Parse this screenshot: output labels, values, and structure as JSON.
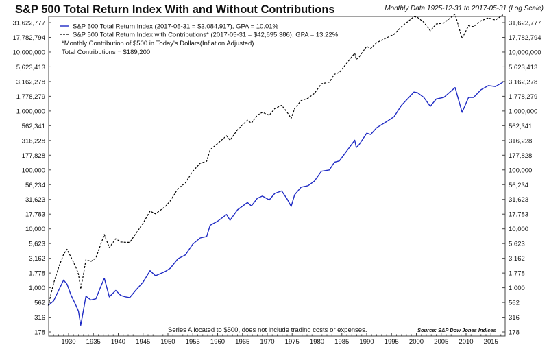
{
  "chart_data": {
    "type": "line",
    "title": "S&P 500 Total Return Index With and Without Contributions",
    "subtitle": "Monthly Data 1925-12-31 to 2017-05-31 (Log Scale)",
    "yscale": "log",
    "xlim": [
      1925.917,
      2017.417
    ],
    "ylim": [
      178,
      56234132
    ],
    "grid": false,
    "legend_position": "top-left",
    "y_ticks": [
      {
        "value": 178,
        "label": "178"
      },
      {
        "value": 316,
        "label": "316"
      },
      {
        "value": 562,
        "label": "562"
      },
      {
        "value": 1000,
        "label": "1,000"
      },
      {
        "value": 1778,
        "label": "1,778"
      },
      {
        "value": 3162,
        "label": "3,162"
      },
      {
        "value": 5623,
        "label": "5,623"
      },
      {
        "value": 10000,
        "label": "10,000"
      },
      {
        "value": 17783,
        "label": "17,783"
      },
      {
        "value": 31623,
        "label": "31,623"
      },
      {
        "value": 56234,
        "label": "56,234"
      },
      {
        "value": 100000,
        "label": "100,000"
      },
      {
        "value": 177828,
        "label": "177,828"
      },
      {
        "value": 316228,
        "label": "316,228"
      },
      {
        "value": 562341,
        "label": "562,341"
      },
      {
        "value": 1000000,
        "label": "1,000,000"
      },
      {
        "value": 1778279,
        "label": "1,778,279"
      },
      {
        "value": 3162278,
        "label": "3,162,278"
      },
      {
        "value": 5623413,
        "label": "5,623,413"
      },
      {
        "value": 10000000,
        "label": "10,000,000"
      },
      {
        "value": 17782794,
        "label": "17,782,794"
      },
      {
        "value": 31622777,
        "label": "31,622,777"
      }
    ],
    "x_ticks": [
      1930,
      1935,
      1940,
      1945,
      1950,
      1955,
      1960,
      1965,
      1970,
      1975,
      1980,
      1985,
      1990,
      1995,
      2000,
      2005,
      2010,
      2015
    ],
    "series": [
      {
        "name": "S&P 500 Total Return Index (2017-05-31 = $3,084,917), GPA = 10.01%",
        "color": "#1f2bc4",
        "dash": "solid",
        "x": [
          1925.92,
          1927,
          1928,
          1929.0,
          1929.7,
          1930.5,
          1931.5,
          1932.0,
          1932.45,
          1933.0,
          1933.5,
          1934.5,
          1935.5,
          1936.5,
          1937.2,
          1938.2,
          1939.5,
          1940.5,
          1941.5,
          1942.3,
          1943.5,
          1945.0,
          1946.4,
          1947.5,
          1949.5,
          1950.5,
          1952.0,
          1953.5,
          1955.0,
          1956.5,
          1957.8,
          1958.5,
          1960.0,
          1961.8,
          1962.5,
          1964.0,
          1966.0,
          1966.8,
          1968.0,
          1969.0,
          1970.4,
          1971.5,
          1972.9,
          1974.0,
          1974.8,
          1975.5,
          1976.8,
          1978.2,
          1979.5,
          1980.9,
          1982.5,
          1983.5,
          1984.5,
          1986.0,
          1987.6,
          1987.9,
          1988.5,
          1990.0,
          1990.8,
          1992.0,
          1994.0,
          1995.5,
          1997.0,
          1998.5,
          1999.5,
          2000.2,
          2001.5,
          2002.8,
          2004.0,
          2005.5,
          2007.8,
          2009.2,
          2010.5,
          2011.5,
          2013.0,
          2014.5,
          2015.9,
          2017.42
        ],
        "y": [
          500,
          600,
          900,
          1350,
          1150,
          750,
          500,
          400,
          230,
          420,
          720,
          620,
          650,
          1050,
          1450,
          700,
          900,
          740,
          700,
          680,
          900,
          1250,
          1950,
          1600,
          1900,
          2150,
          3100,
          3600,
          5500,
          7000,
          7400,
          11500,
          13500,
          17500,
          14000,
          21000,
          28000,
          24500,
          33000,
          36000,
          31000,
          40000,
          44000,
          32000,
          24000,
          38000,
          51000,
          54000,
          65000,
          95000,
          100000,
          135000,
          142000,
          210000,
          320000,
          240000,
          270000,
          420000,
          400000,
          520000,
          660000,
          800000,
          1250000,
          1700000,
          2100000,
          2050000,
          1700000,
          1200000,
          1600000,
          1700000,
          2500000,
          950000,
          1700000,
          1700000,
          2300000,
          2700000,
          2600000,
          3084917
        ]
      },
      {
        "name": "S&P 500 Total Return Index with Contributions* (2017-05-31 = $42,695,386), GPA = 13.22%",
        "color": "#000000",
        "dash": "dashed",
        "x": [
          1925.92,
          1927,
          1928,
          1929.0,
          1929.7,
          1930.5,
          1931.5,
          1932.0,
          1932.45,
          1933.0,
          1933.5,
          1934.5,
          1935.5,
          1936.5,
          1937.2,
          1938.2,
          1939.5,
          1940.5,
          1941.5,
          1942.3,
          1943.5,
          1945.0,
          1946.4,
          1947.5,
          1949.5,
          1950.5,
          1952.0,
          1953.5,
          1955.0,
          1956.5,
          1957.8,
          1958.5,
          1960.0,
          1961.8,
          1962.5,
          1964.0,
          1966.0,
          1966.8,
          1968.0,
          1969.0,
          1970.4,
          1971.5,
          1972.9,
          1974.0,
          1974.8,
          1975.5,
          1976.8,
          1978.2,
          1979.5,
          1980.9,
          1982.5,
          1983.5,
          1984.5,
          1986.0,
          1987.6,
          1987.9,
          1988.5,
          1990.0,
          1990.8,
          1992.0,
          1994.0,
          1995.5,
          1997.0,
          1998.5,
          1999.5,
          2000.2,
          2001.5,
          2002.8,
          2004.0,
          2005.5,
          2007.8,
          2009.2,
          2010.5,
          2011.5,
          2013.0,
          2014.5,
          2015.9,
          2017.42
        ],
        "y": [
          500,
          1200,
          2200,
          3700,
          4500,
          3300,
          2200,
          1700,
          950,
          1700,
          3000,
          2800,
          3200,
          5500,
          8000,
          4800,
          6800,
          6000,
          5900,
          5900,
          8200,
          12500,
          20000,
          18000,
          24000,
          30000,
          48000,
          60000,
          95000,
          130000,
          140000,
          220000,
          280000,
          380000,
          320000,
          480000,
          700000,
          620000,
          850000,
          950000,
          850000,
          1100000,
          1250000,
          950000,
          750000,
          1100000,
          1500000,
          1650000,
          2000000,
          2900000,
          3100000,
          4200000,
          4500000,
          6500000,
          9600000,
          7500000,
          8300000,
          12500000,
          11500000,
          14500000,
          17500000,
          20000000,
          27000000,
          34000000,
          40000000,
          39000000,
          32000000,
          23000000,
          30000000,
          31000000,
          44000000,
          17000000,
          28000000,
          27000000,
          34000000,
          38000000,
          35000000,
          42695386
        ]
      }
    ],
    "legend": [
      "S&P 500 Total Return Index (2017-05-31 = $3,084,917), GPA = 10.01%",
      "S&P 500 Total Return Index with Contributions* (2017-05-31 = $42,695,386), GPA = 13.22%"
    ],
    "annotations": {
      "note_line1": "*Monthly Contribution of $500 in Today's Dollars(Inflation Adjusted)",
      "note_line2": "Total Contributions = $189,200",
      "footnote": "Series Allocated to $500, does not include trading costs or expenses.",
      "source": "Source: S&P Dow Jones Indices"
    }
  }
}
